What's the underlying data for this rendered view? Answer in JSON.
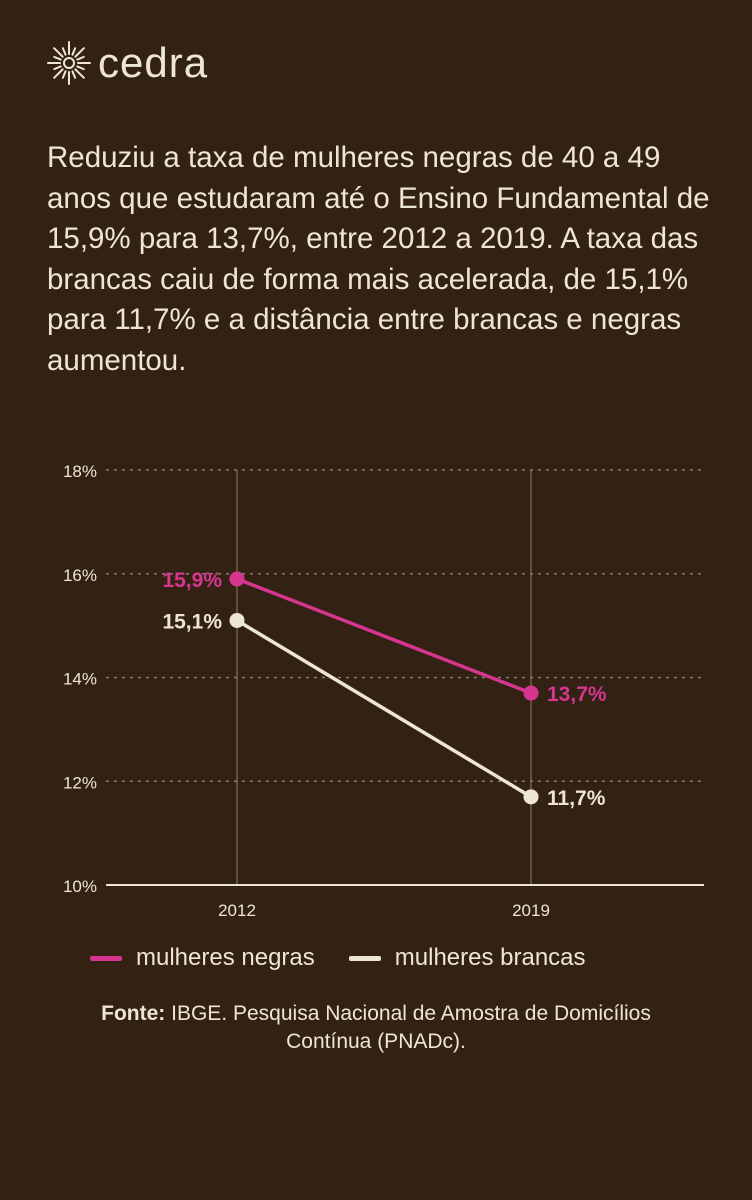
{
  "brand": {
    "name": "cedra"
  },
  "headline": "Reduziu a taxa de mulheres negras de 40 a 49 anos que estudaram até o Ensino Fundamental de 15,9% para 13,7%, entre 2012 a 2019. A taxa das brancas caiu de forma mais acelerada, de 15,1% para 11,7% e a distância entre brancas e negras aumentou.",
  "colors": {
    "background": "#332213",
    "negras": "#d6368f",
    "brancas": "#ede6d6",
    "grid": "#8a7d70"
  },
  "chart_data": {
    "type": "line",
    "x": [
      "2012",
      "2019"
    ],
    "ylim": [
      10,
      18
    ],
    "yticks": [
      10,
      12,
      14,
      16,
      18
    ],
    "ytick_labels": [
      "10%",
      "12%",
      "14%",
      "16%",
      "18%"
    ],
    "grid": true,
    "legend_position": "bottom",
    "series": [
      {
        "name": "mulheres negras",
        "values": [
          15.9,
          13.7
        ],
        "labels": [
          "15,9%",
          "13,7%"
        ],
        "color": "#d6368f"
      },
      {
        "name": "mulheres brancas",
        "values": [
          15.1,
          11.7
        ],
        "labels": [
          "15,1%",
          "11,7%"
        ],
        "color": "#ede6d6"
      }
    ]
  },
  "source": {
    "label": "Fonte:",
    "text": " IBGE. Pesquisa Nacional de Amostra de Domicílios Contínua (PNADc)."
  }
}
